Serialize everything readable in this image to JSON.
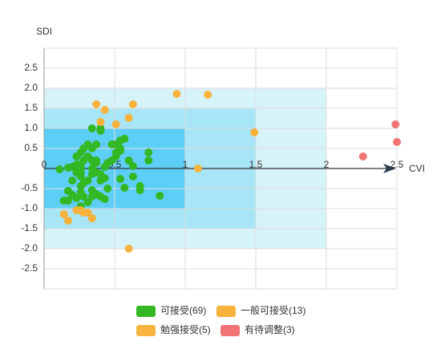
{
  "chart_data": {
    "type": "scatter",
    "x_label": "CVI",
    "y_label": "SDI",
    "xlim": [
      0,
      2.5
    ],
    "ylim": [
      -3,
      3
    ],
    "xticks": [
      0,
      0.5,
      1,
      1.5,
      2,
      2.5
    ],
    "yticks": [
      2.5,
      {
        "value": 2,
        "label": "2.0"
      },
      1.5,
      {
        "value": 1,
        "label": "1.0"
      },
      0.5,
      -0.5,
      {
        "value": -1,
        "label": "-1.0"
      },
      -1.5,
      {
        "value": -2,
        "label": "-2.0"
      },
      -2.5
    ],
    "grid": true,
    "zones": [
      {
        "x": [
          0,
          2
        ],
        "y": [
          -2,
          2
        ],
        "color": "#d6f3fa"
      },
      {
        "x": [
          0,
          1.5
        ],
        "y": [
          -1.5,
          1.5
        ],
        "color": "#a8e5f6"
      },
      {
        "x": [
          0,
          1
        ],
        "y": [
          -1,
          1
        ],
        "color": "#5dcff7"
      }
    ],
    "series": [
      {
        "name": "可接受(69)",
        "color": "#33b722",
        "x": [
          0.11,
          0.17,
          0.23,
          0.23,
          0.26,
          0.28,
          0.31,
          0.34,
          0.4,
          0.4,
          0.37,
          0.34,
          0.31,
          0.34,
          0.37,
          0.26,
          0.26,
          0.26,
          0.2,
          0.17,
          0.2,
          0.14,
          0.17,
          0.23,
          0.26,
          0.26,
          0.28,
          0.26,
          0.34,
          0.34,
          0.37,
          0.4,
          0.43,
          0.34,
          0.37,
          0.4,
          0.43,
          0.45,
          0.48,
          0.51,
          0.54,
          0.51,
          0.54,
          0.57,
          0.54,
          0.48,
          0.63,
          0.63,
          0.54,
          0.57,
          0.68,
          0.68,
          0.74,
          0.74,
          0.82,
          0.31,
          0.28,
          0.34,
          0.23,
          0.2,
          0.31,
          0.37,
          0.43,
          0.51,
          0.28,
          0.4,
          0.45,
          0.6,
          0.26
        ],
        "values": [
          -0.02,
          0.02,
          0.1,
          0.3,
          0.4,
          0.5,
          0.6,
          1.0,
          1.0,
          0.94,
          0.6,
          0.5,
          0.3,
          0.2,
          0.14,
          0.1,
          -0.1,
          -0.2,
          -0.3,
          -0.56,
          -0.66,
          -0.8,
          -0.8,
          -0.74,
          -0.6,
          -0.44,
          -0.7,
          -0.94,
          -0.54,
          -0.7,
          -0.64,
          -0.7,
          -0.76,
          -0.14,
          -0.1,
          -0.14,
          -0.24,
          0.14,
          0.2,
          0.4,
          0.5,
          0.6,
          0.7,
          0.74,
          0.44,
          0.6,
          0.06,
          -0.2,
          -0.26,
          -0.48,
          -0.44,
          -0.54,
          0.4,
          0.2,
          -0.68,
          -0.3,
          -0.36,
          0,
          -0.1,
          0.04,
          -0.84,
          0.2,
          0.04,
          0.3,
          0.2,
          -0.3,
          -0.5,
          0.2,
          0
        ]
      },
      {
        "name": "一般可接受(13)",
        "color": "#f6b23a",
        "x": [
          0.43,
          0.6,
          0.51,
          0.4,
          1.49,
          1.09,
          0.14,
          0.17,
          0.23,
          0.28,
          0.31,
          0.34,
          0.26
        ],
        "values": [
          1.46,
          1.26,
          1.1,
          1.16,
          0.9,
          0,
          -1.14,
          -1.3,
          -1.04,
          -1.1,
          -1.1,
          -1.24,
          -1.04
        ]
      },
      {
        "name": "勉强接受(5)",
        "color": "#f8b43e",
        "x": [
          0.37,
          0.63,
          0.94,
          1.16,
          0.6
        ],
        "values": [
          1.6,
          1.6,
          1.86,
          1.84,
          -2.0
        ]
      },
      {
        "name": "有待调整(3)",
        "color": "#f27474",
        "x": [
          2.49,
          2.5,
          2.26
        ],
        "values": [
          1.1,
          0.66,
          0.3
        ]
      }
    ]
  }
}
